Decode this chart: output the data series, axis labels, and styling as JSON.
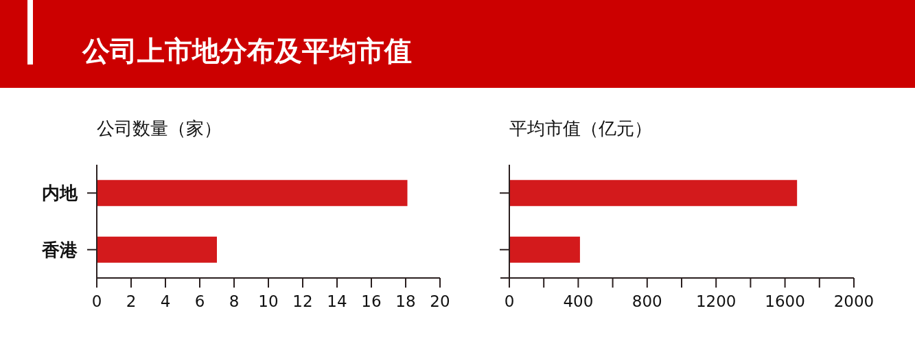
{
  "chart_data": [
    {
      "type": "bar",
      "orientation": "horizontal",
      "title": "公司上市地分布及平均市值",
      "xlabel": "公司数量（家）",
      "categories": [
        "内地",
        "香港"
      ],
      "values": [
        18.1,
        7
      ],
      "color": "#d31a1c",
      "xlim": [
        0,
        20
      ],
      "xticks": [
        0,
        2,
        4,
        6,
        8,
        10,
        12,
        14,
        16,
        18,
        20
      ]
    },
    {
      "type": "bar",
      "orientation": "horizontal",
      "xlabel": "平均市值（亿元）",
      "categories": [
        null,
        null
      ],
      "values": [
        1670,
        410
      ],
      "color": "#d31a1c",
      "xlim": [
        0,
        2000
      ],
      "xticks": [
        0,
        {
          "value": 200,
          "label": null
        },
        400,
        {
          "value": 600,
          "label": null
        },
        800,
        {
          "value": 1000,
          "label": null
        },
        1200,
        {
          "value": 1400,
          "label": null
        },
        1600,
        {
          "value": 1800,
          "label": null
        },
        2000
      ],
      "tick_labels": "x"
    }
  ]
}
